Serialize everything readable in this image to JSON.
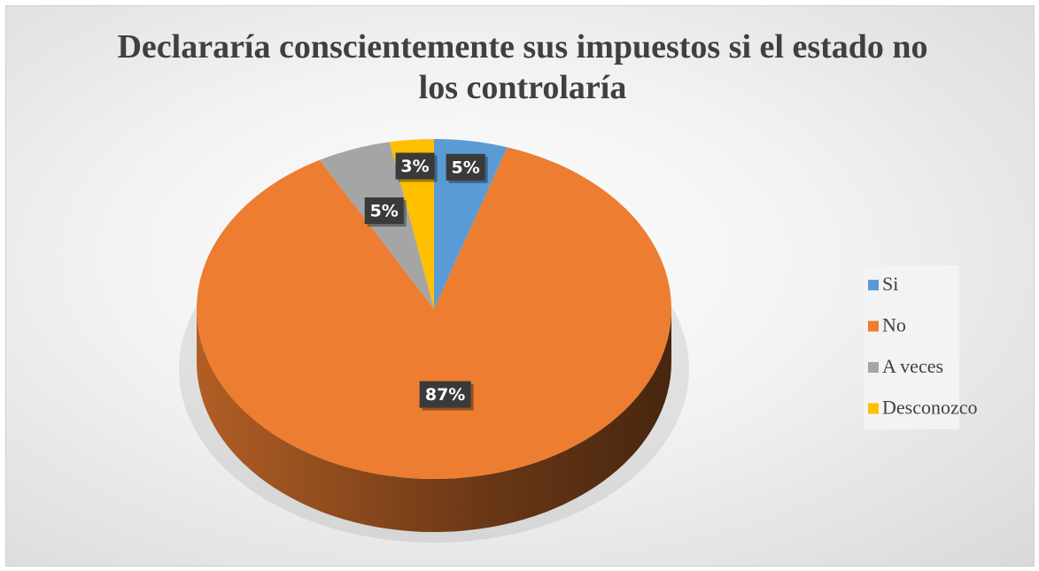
{
  "chart_data": {
    "type": "pie",
    "title": "Declararía conscientemente sus impuestos si el estado no los controlaría",
    "categories": [
      "Si",
      "No",
      "A veces",
      "Desconozco"
    ],
    "values": [
      5,
      87,
      5,
      3
    ],
    "value_labels": [
      "5%",
      "87%",
      "5%",
      "3%"
    ],
    "colors": [
      "#5b9bd5",
      "#ed7d31",
      "#a5a5a5",
      "#ffc000"
    ],
    "legend": "right"
  }
}
